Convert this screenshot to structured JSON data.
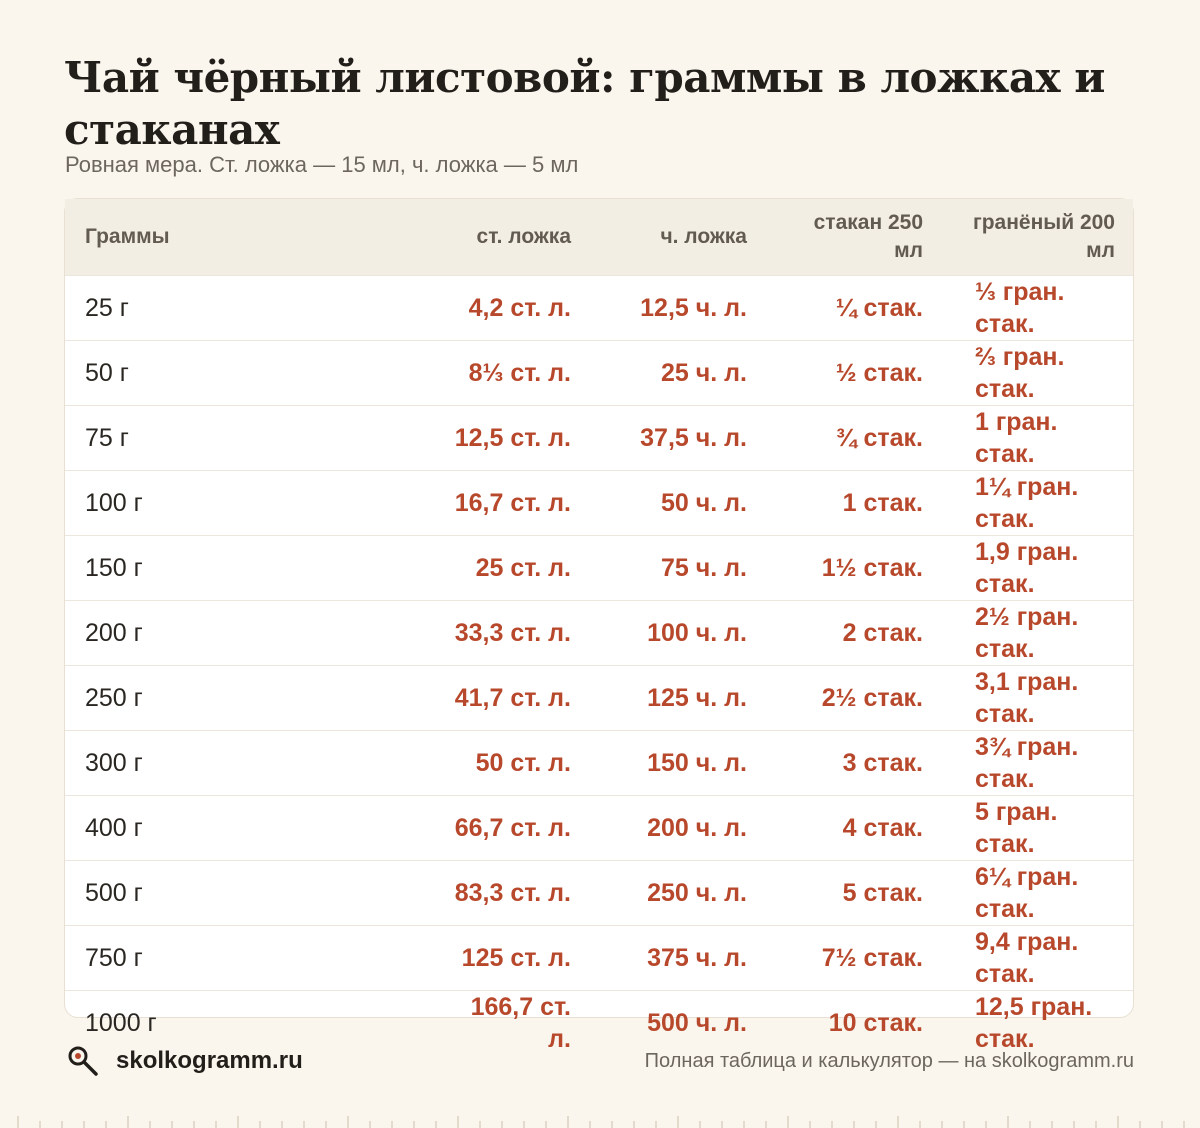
{
  "title": "Чай чёрный листовой: граммы в ложках и стаканах",
  "subtitle": "Ровная мера. Ст. ложка — 15 мл, ч. ложка — 5 мл",
  "table": {
    "headers": [
      "Граммы",
      "ст. ложка",
      "ч. ложка",
      "стакан 250 мл",
      "гранёный 200 мл"
    ],
    "rows": [
      [
        "25 г",
        "4,2 ст. л.",
        "12,5 ч. л.",
        "¼ стак.",
        "⅓ гран. стак."
      ],
      [
        "50 г",
        "8⅓ ст. л.",
        "25 ч. л.",
        "½ стак.",
        "⅔ гран. стак."
      ],
      [
        "75 г",
        "12,5 ст. л.",
        "37,5 ч. л.",
        "¾ стак.",
        "1 гран. стак."
      ],
      [
        "100 г",
        "16,7 ст. л.",
        "50 ч. л.",
        "1 стак.",
        "1¼ гран. стак."
      ],
      [
        "150 г",
        "25 ст. л.",
        "75 ч. л.",
        "1½ стак.",
        "1,9 гран. стак."
      ],
      [
        "200 г",
        "33,3 ст. л.",
        "100 ч. л.",
        "2 стак.",
        "2½ гран. стак."
      ],
      [
        "250 г",
        "41,7 ст. л.",
        "125 ч. л.",
        "2½ стак.",
        "3,1 гран. стак."
      ],
      [
        "300 г",
        "50 ст. л.",
        "150 ч. л.",
        "3 стак.",
        "3¾ гран. стак."
      ],
      [
        "400 г",
        "66,7 ст. л.",
        "200 ч. л.",
        "4 стак.",
        "5 гран. стак."
      ],
      [
        "500 г",
        "83,3 ст. л.",
        "250 ч. л.",
        "5 стак.",
        "6¼ гран. стак."
      ],
      [
        "750 г",
        "125 ст. л.",
        "375 ч. л.",
        "7½ стак.",
        "9,4 гран. стак."
      ],
      [
        "1000 г",
        "166,7 ст. л.",
        "500 ч. л.",
        "10 стак.",
        "12,5 гран. стак."
      ]
    ]
  },
  "footer": {
    "icon": "magnifier-icon",
    "brand": "skolkogramm.ru",
    "note": "Полная таблица и калькулятор — на skolkogramm.ru"
  },
  "colors": {
    "background": "#faf6ee",
    "accent": "#b8482b",
    "header_row": "#f3eee3"
  }
}
